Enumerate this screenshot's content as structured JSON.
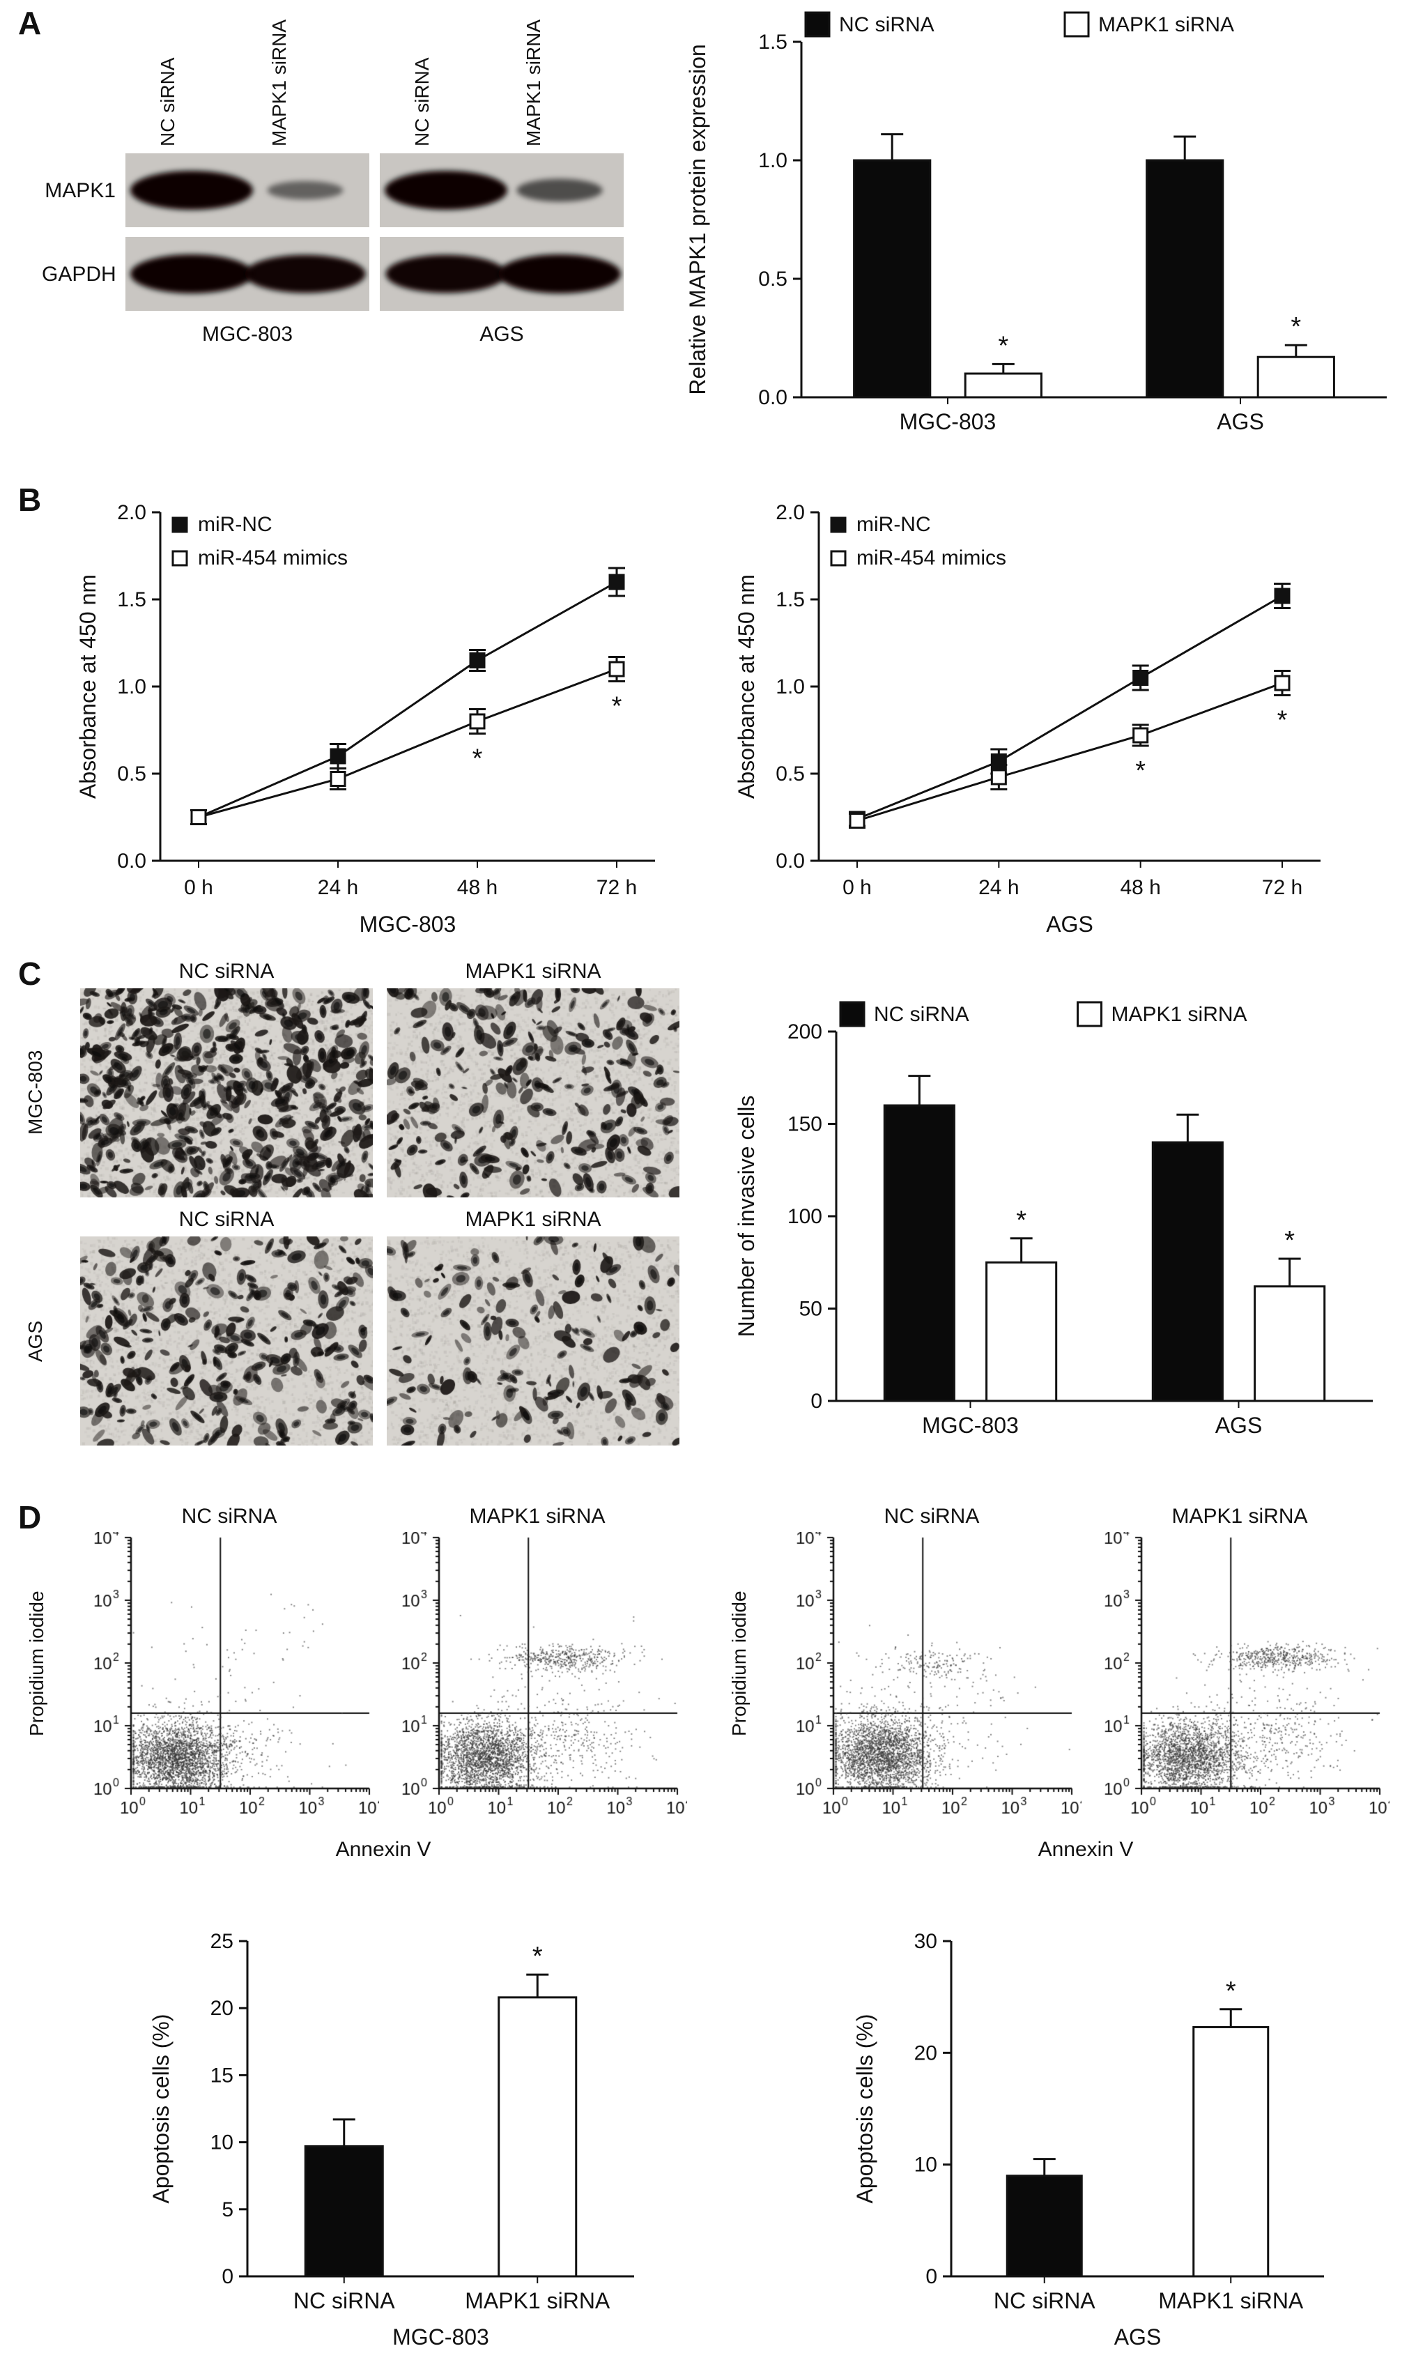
{
  "figure": {
    "panel_labels": [
      "A",
      "B",
      "C",
      "D"
    ]
  },
  "panel_a": {
    "blot": {
      "lane_labels": [
        "NC siRNA",
        "MAPK1 siRNA",
        "NC siRNA",
        "MAPK1 siRNA"
      ],
      "row_labels": [
        "MAPK1",
        "GAPDH"
      ],
      "group_labels": [
        "MGC-803",
        "AGS"
      ],
      "panels": [
        {
          "id": "mgc-mapk1",
          "bands": [
            1.0,
            0.3
          ]
        },
        {
          "id": "ags-mapk1",
          "bands": [
            1.0,
            0.45
          ]
        },
        {
          "id": "mgc-gapdh",
          "bands": [
            1.0,
            0.97
          ]
        },
        {
          "id": "ags-gapdh",
          "bands": [
            0.97,
            1.0
          ]
        }
      ]
    }
  },
  "panel_c": {
    "col_labels": [
      "NC siRNA",
      "MAPK1 siRNA"
    ],
    "row_labels": [
      "MGC-803",
      "AGS"
    ],
    "images": [
      {
        "row": "MGC-803",
        "col": "NC siRNA",
        "density": 620,
        "seed": 101
      },
      {
        "row": "MGC-803",
        "col": "MAPK1 siRNA",
        "density": 300,
        "seed": 102
      },
      {
        "row": "AGS",
        "col": "NC siRNA",
        "density": 330,
        "seed": 103
      },
      {
        "row": "AGS",
        "col": "MAPK1 siRNA",
        "density": 190,
        "seed": 104
      }
    ]
  },
  "chart_data": [
    {
      "id": "mapk1-expression",
      "type": "bar",
      "categories": [
        "MGC-803",
        "AGS"
      ],
      "series": [
        {
          "name": "NC siRNA",
          "fill": "#0a0a0a",
          "values": [
            1.0,
            1.0
          ],
          "errors": [
            0.11,
            0.1
          ],
          "sig": [
            "",
            ""
          ]
        },
        {
          "name": "MAPK1 siRNA",
          "fill": "#ffffff",
          "values": [
            0.1,
            0.17
          ],
          "errors": [
            0.04,
            0.05
          ],
          "sig": [
            "*",
            "*"
          ]
        }
      ],
      "ylabel": "Relative MAPK1 protein expression",
      "ylim": [
        0,
        1.5
      ],
      "yticks": [
        0,
        0.5,
        1.0,
        1.5
      ],
      "ytick_format": 1,
      "legend": true
    },
    {
      "id": "cck8-mgc803",
      "type": "line",
      "x": [
        "0 h",
        "24 h",
        "48 h",
        "72 h"
      ],
      "series": [
        {
          "name": "miR-NC",
          "marker": "filled",
          "values": [
            0.25,
            0.6,
            1.15,
            1.6
          ],
          "errors": [
            0.04,
            0.07,
            0.06,
            0.08
          ],
          "sig": [
            "",
            "",
            "",
            ""
          ]
        },
        {
          "name": "miR-454 mimics",
          "marker": "open",
          "values": [
            0.25,
            0.47,
            0.8,
            1.1
          ],
          "errors": [
            0.04,
            0.06,
            0.07,
            0.07
          ],
          "sig": [
            "",
            "",
            "*",
            "*"
          ]
        }
      ],
      "xlabel": "MGC-803",
      "ylabel": "Absorbance at 450 nm",
      "ylim": [
        0,
        2.0
      ],
      "yticks": [
        0,
        0.5,
        1.0,
        1.5,
        2.0
      ],
      "ytick_format": 1
    },
    {
      "id": "cck8-ags",
      "type": "line",
      "x": [
        "0 h",
        "24 h",
        "48 h",
        "72 h"
      ],
      "series": [
        {
          "name": "miR-NC",
          "marker": "filled",
          "values": [
            0.24,
            0.57,
            1.05,
            1.52
          ],
          "errors": [
            0.04,
            0.07,
            0.07,
            0.07
          ],
          "sig": [
            "",
            "",
            "",
            ""
          ]
        },
        {
          "name": "miR-454 mimics",
          "marker": "open",
          "values": [
            0.23,
            0.48,
            0.72,
            1.02
          ],
          "errors": [
            0.04,
            0.07,
            0.06,
            0.07
          ],
          "sig": [
            "",
            "",
            "*",
            "*"
          ]
        }
      ],
      "xlabel": "AGS",
      "ylabel": "Absorbance at 450 nm",
      "ylim": [
        0,
        2.0
      ],
      "yticks": [
        0,
        0.5,
        1.0,
        1.5,
        2.0
      ],
      "ytick_format": 1
    },
    {
      "id": "invasion",
      "type": "bar",
      "categories": [
        "MGC-803",
        "AGS"
      ],
      "series": [
        {
          "name": "NC siRNA",
          "fill": "#0a0a0a",
          "values": [
            160,
            140
          ],
          "errors": [
            16,
            15
          ],
          "sig": [
            "",
            ""
          ]
        },
        {
          "name": "MAPK1 siRNA",
          "fill": "#ffffff",
          "values": [
            75,
            62
          ],
          "errors": [
            13,
            15
          ],
          "sig": [
            "*",
            "*"
          ]
        }
      ],
      "ylabel": "Number of invasive cells",
      "ylim": [
        0,
        200
      ],
      "yticks": [
        0,
        50,
        100,
        150,
        200
      ],
      "ytick_format": 0,
      "legend": true
    },
    {
      "id": "flow-mgc803-nc",
      "type": "scatter",
      "title": "NC siRNA",
      "xlabel": "Annexin V",
      "ylabel": "Propidium iodide",
      "xlim_log": [
        0,
        4
      ],
      "ylim_log": [
        0,
        4
      ],
      "gate_x_log": 1.5,
      "gate_y_log": 1.2,
      "seed": 11,
      "populations": [
        {
          "cx": 0.75,
          "cy": 0.5,
          "sx": 0.42,
          "sy": 0.3,
          "n": 2600
        },
        {
          "cx": 1.7,
          "cy": 0.55,
          "sx": 0.6,
          "sy": 0.3,
          "n": 220
        },
        {
          "cx": 1.8,
          "cy": 1.9,
          "sx": 0.9,
          "sy": 0.7,
          "n": 70
        }
      ]
    },
    {
      "id": "flow-mgc803-si",
      "type": "scatter",
      "title": "MAPK1 siRNA",
      "xlabel": "Annexin V",
      "ylabel": "Propidium iodide",
      "xlim_log": [
        0,
        4
      ],
      "ylim_log": [
        0,
        4
      ],
      "gate_x_log": 1.5,
      "gate_y_log": 1.2,
      "seed": 23,
      "populations": [
        {
          "cx": 0.75,
          "cy": 0.5,
          "sx": 0.42,
          "sy": 0.3,
          "n": 2300
        },
        {
          "cx": 2.2,
          "cy": 0.7,
          "sx": 0.55,
          "sy": 0.35,
          "n": 300
        },
        {
          "cx": 2.1,
          "cy": 2.08,
          "sx": 0.5,
          "sy": 0.1,
          "n": 420
        },
        {
          "cx": 2.0,
          "cy": 1.5,
          "sx": 0.9,
          "sy": 0.5,
          "n": 80
        }
      ]
    },
    {
      "id": "flow-ags-nc",
      "type": "scatter",
      "title": "NC siRNA",
      "xlabel": "Annexin V",
      "ylabel": "Propidium iodide",
      "xlim_log": [
        0,
        4
      ],
      "ylim_log": [
        0,
        4
      ],
      "gate_x_log": 1.5,
      "gate_y_log": 1.2,
      "seed": 37,
      "populations": [
        {
          "cx": 0.8,
          "cy": 0.55,
          "sx": 0.45,
          "sy": 0.32,
          "n": 2600
        },
        {
          "cx": 1.6,
          "cy": 2.0,
          "sx": 0.45,
          "sy": 0.12,
          "n": 150
        },
        {
          "cx": 1.9,
          "cy": 1.2,
          "sx": 0.8,
          "sy": 0.6,
          "n": 120
        }
      ]
    },
    {
      "id": "flow-ags-si",
      "type": "scatter",
      "title": "MAPK1 siRNA",
      "xlabel": "Annexin V",
      "ylabel": "Propidium iodide",
      "xlim_log": [
        0,
        4
      ],
      "ylim_log": [
        0,
        4
      ],
      "gate_x_log": 1.5,
      "gate_y_log": 1.2,
      "seed": 53,
      "populations": [
        {
          "cx": 0.8,
          "cy": 0.5,
          "sx": 0.45,
          "sy": 0.3,
          "n": 2200
        },
        {
          "cx": 2.3,
          "cy": 2.1,
          "sx": 0.5,
          "sy": 0.1,
          "n": 450
        },
        {
          "cx": 2.3,
          "cy": 0.75,
          "sx": 0.55,
          "sy": 0.35,
          "n": 280
        },
        {
          "cx": 2.0,
          "cy": 1.5,
          "sx": 0.9,
          "sy": 0.5,
          "n": 80
        }
      ]
    },
    {
      "id": "apoptosis-mgc803",
      "type": "bar",
      "categories": [
        "NC siRNA",
        "MAPK1 siRNA"
      ],
      "series": [
        {
          "name": "",
          "fills": [
            "#0a0a0a",
            "#ffffff"
          ],
          "values": [
            9.7,
            20.8
          ],
          "errors": [
            2.0,
            1.7
          ],
          "sig": [
            "",
            "*"
          ]
        }
      ],
      "xlabel": "MGC-803",
      "ylabel": "Apoptosis cells (%)",
      "ylim": [
        0,
        25
      ],
      "yticks": [
        0,
        5,
        10,
        15,
        20,
        25
      ],
      "ytick_format": 0,
      "legend": false
    },
    {
      "id": "apoptosis-ags",
      "type": "bar",
      "categories": [
        "NC siRNA",
        "MAPK1 siRNA"
      ],
      "series": [
        {
          "name": "",
          "fills": [
            "#0a0a0a",
            "#ffffff"
          ],
          "values": [
            9.0,
            22.3
          ],
          "errors": [
            1.5,
            1.6
          ],
          "sig": [
            "",
            "*"
          ]
        }
      ],
      "xlabel": "AGS",
      "ylabel": "Apoptosis cells (%)",
      "ylim": [
        0,
        30
      ],
      "yticks": [
        0,
        10,
        20,
        30
      ],
      "ytick_format": 0,
      "legend": false
    }
  ]
}
